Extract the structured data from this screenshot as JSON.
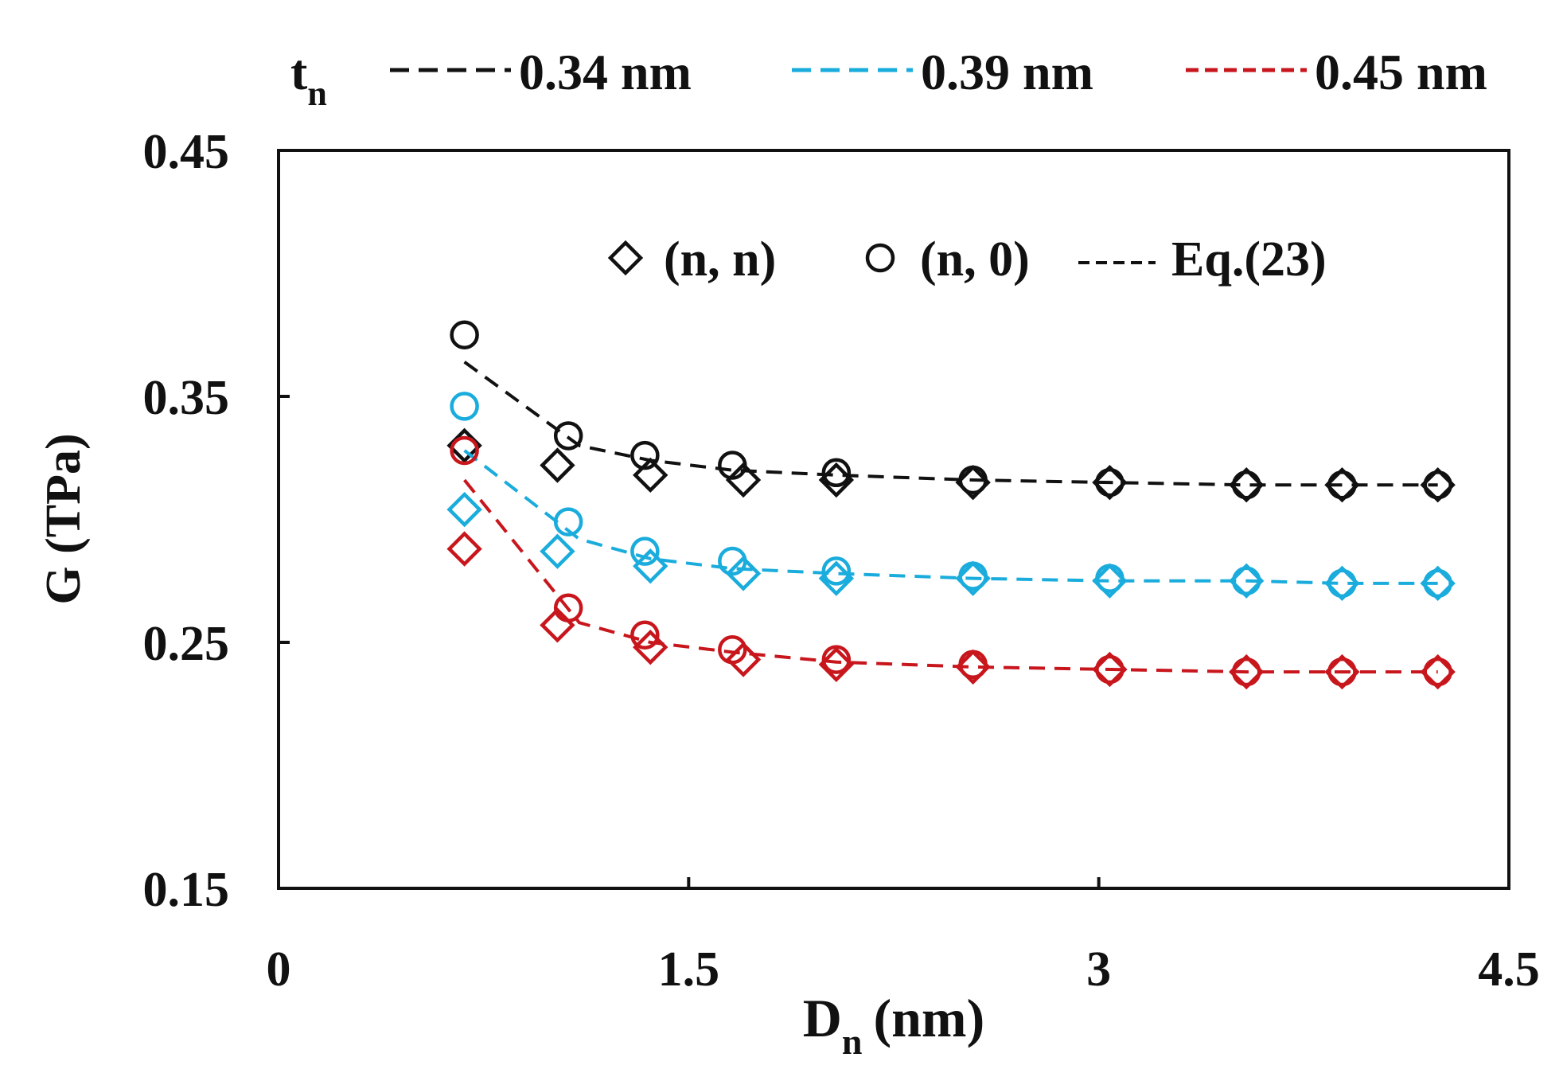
{
  "chart_data": {
    "type": "line",
    "title": "",
    "xlabel_main": "D",
    "xlabel_sub": "n",
    "xlabel_unit": "(nm)",
    "ylabel": "G (TPa)",
    "xlim": [
      0,
      4.5
    ],
    "ylim": [
      0.15,
      0.45
    ],
    "x_ticks": [
      0,
      1.5,
      3,
      4.5
    ],
    "x_tick_labels": [
      "0",
      "1.5",
      "3",
      "4.5"
    ],
    "y_ticks": [
      0.15,
      0.25,
      0.35,
      0.45
    ],
    "y_tick_labels": [
      "0.15",
      "0.25",
      "0.35",
      "0.45"
    ],
    "grid": false,
    "top_legend": {
      "title_main": "t",
      "title_sub": "n",
      "entries": [
        {
          "label": "0.34 nm",
          "color": "#111111"
        },
        {
          "label": "0.39 nm",
          "color": "#1AACDC"
        },
        {
          "label": "0.45 nm",
          "color": "#C8161D"
        }
      ]
    },
    "marker_legend": {
      "entries": [
        {
          "marker": "diamond",
          "label": "(n, n)"
        },
        {
          "marker": "circle",
          "label": "(n, 0)"
        },
        {
          "marker": "dash",
          "label": "Eq.(23)"
        }
      ]
    },
    "series": [
      {
        "name": "0.34 nm",
        "color": "#111111",
        "eq23_line": {
          "x": [
            0.68,
            1.1,
            1.36,
            1.66,
            2.04,
            2.54,
            3.04,
            3.54,
            3.89,
            4.24
          ],
          "y": [
            0.364,
            0.33,
            0.324,
            0.32,
            0.318,
            0.316,
            0.315,
            0.314,
            0.314,
            0.314
          ]
        },
        "armchair_nn": {
          "x": [
            0.68,
            1.02,
            1.36,
            1.7,
            2.04,
            2.54,
            3.04,
            3.54,
            3.89,
            4.24
          ],
          "y": [
            0.33,
            0.322,
            0.318,
            0.316,
            0.316,
            0.315,
            0.315,
            0.314,
            0.314,
            0.314
          ]
        },
        "zigzag_n0": {
          "x": [
            0.68,
            1.06,
            1.34,
            1.66,
            2.04,
            2.54,
            3.04,
            3.54,
            3.89,
            4.24
          ],
          "y": [
            0.375,
            0.334,
            0.326,
            0.322,
            0.319,
            0.316,
            0.315,
            0.314,
            0.314,
            0.314
          ]
        }
      },
      {
        "name": "0.39 nm",
        "color": "#1AACDC",
        "eq23_line": {
          "x": [
            0.68,
            1.1,
            1.36,
            1.66,
            2.04,
            2.54,
            3.04,
            3.54,
            3.89,
            4.24
          ],
          "y": [
            0.328,
            0.292,
            0.284,
            0.28,
            0.278,
            0.276,
            0.275,
            0.275,
            0.274,
            0.274
          ]
        },
        "armchair_nn": {
          "x": [
            0.68,
            1.02,
            1.36,
            1.7,
            2.04,
            2.54,
            3.04,
            3.54,
            3.89,
            4.24
          ],
          "y": [
            0.304,
            0.287,
            0.281,
            0.278,
            0.276,
            0.276,
            0.275,
            0.275,
            0.274,
            0.274
          ]
        },
        "zigzag_n0": {
          "x": [
            0.68,
            1.06,
            1.34,
            1.66,
            2.04,
            2.54,
            3.04,
            3.54,
            3.89,
            4.24
          ],
          "y": [
            0.346,
            0.299,
            0.287,
            0.283,
            0.279,
            0.277,
            0.276,
            0.275,
            0.274,
            0.274
          ]
        }
      },
      {
        "name": "0.45 nm",
        "color": "#C8161D",
        "eq23_line": {
          "x": [
            0.68,
            1.1,
            1.36,
            1.66,
            2.04,
            2.54,
            3.04,
            3.54,
            3.89,
            4.24
          ],
          "y": [
            0.316,
            0.258,
            0.25,
            0.246,
            0.242,
            0.24,
            0.239,
            0.238,
            0.238,
            0.238
          ]
        },
        "armchair_nn": {
          "x": [
            0.68,
            1.02,
            1.36,
            1.7,
            2.04,
            2.54,
            3.04,
            3.54,
            3.89,
            4.24
          ],
          "y": [
            0.288,
            0.257,
            0.248,
            0.243,
            0.241,
            0.24,
            0.239,
            0.238,
            0.238,
            0.238
          ]
        },
        "zigzag_n0": {
          "x": [
            0.68,
            1.06,
            1.34,
            1.66,
            2.04,
            2.54,
            3.04,
            3.54,
            3.89,
            4.24
          ],
          "y": [
            0.328,
            0.264,
            0.253,
            0.247,
            0.243,
            0.241,
            0.239,
            0.238,
            0.238,
            0.238
          ]
        }
      }
    ]
  }
}
